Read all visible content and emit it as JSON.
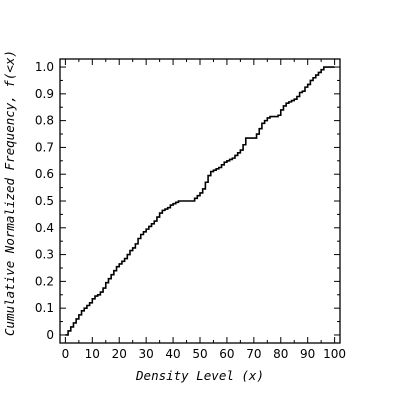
{
  "chart_data": {
    "type": "line",
    "xlabel": "Density Level (x)",
    "ylabel": "Cumulative Normalized Frequency, f(<x)",
    "xlim": [
      -2,
      102
    ],
    "ylim": [
      -0.03,
      1.03
    ],
    "xticks": [
      0,
      10,
      20,
      30,
      40,
      50,
      60,
      70,
      80,
      90,
      100
    ],
    "yticks": [
      0,
      0.1,
      0.2,
      0.3,
      0.4,
      0.5,
      0.6,
      0.7,
      0.8,
      0.9,
      1.0
    ],
    "xtick_labels": [
      "0",
      "10",
      "20",
      "30",
      "40",
      "50",
      "60",
      "70",
      "80",
      "90",
      "100"
    ],
    "ytick_labels": [
      "0",
      "0.1",
      "0.2",
      "0.3",
      "0.4",
      "0.5",
      "0.6",
      "0.7",
      "0.8",
      "0.9",
      "1.0"
    ],
    "grid": false,
    "series": [
      {
        "color": "#000000",
        "x": [
          0,
          1,
          2,
          3,
          4,
          5,
          6,
          7,
          8,
          9,
          10,
          11,
          12,
          13,
          14,
          15,
          16,
          17,
          18,
          19,
          20,
          21,
          22,
          23,
          24,
          25,
          26,
          27,
          28,
          29,
          30,
          31,
          32,
          33,
          34,
          35,
          36,
          37,
          38,
          39,
          40,
          41,
          42,
          43,
          44,
          45,
          46,
          47,
          48,
          49,
          50,
          51,
          52,
          53,
          54,
          55,
          56,
          57,
          58,
          59,
          60,
          61,
          62,
          63,
          64,
          65,
          66,
          67,
          68,
          69,
          70,
          71,
          72,
          73,
          74,
          75,
          76,
          77,
          78,
          79,
          80,
          81,
          82,
          83,
          84,
          85,
          86,
          87,
          88,
          89,
          90,
          91,
          92,
          93,
          94,
          95,
          96,
          97,
          98,
          99,
          100
        ],
        "y": [
          0.0,
          0.015,
          0.03,
          0.045,
          0.06,
          0.075,
          0.09,
          0.1,
          0.11,
          0.12,
          0.135,
          0.145,
          0.15,
          0.16,
          0.175,
          0.195,
          0.21,
          0.225,
          0.24,
          0.255,
          0.265,
          0.275,
          0.285,
          0.3,
          0.315,
          0.325,
          0.34,
          0.36,
          0.375,
          0.385,
          0.395,
          0.405,
          0.415,
          0.425,
          0.44,
          0.455,
          0.465,
          0.47,
          0.475,
          0.485,
          0.49,
          0.495,
          0.5,
          0.5,
          0.5,
          0.5,
          0.5,
          0.5,
          0.51,
          0.52,
          0.53,
          0.545,
          0.57,
          0.595,
          0.61,
          0.615,
          0.62,
          0.625,
          0.635,
          0.645,
          0.65,
          0.655,
          0.66,
          0.67,
          0.68,
          0.69,
          0.71,
          0.735,
          0.735,
          0.735,
          0.735,
          0.75,
          0.77,
          0.79,
          0.8,
          0.81,
          0.815,
          0.815,
          0.815,
          0.82,
          0.84,
          0.855,
          0.865,
          0.87,
          0.875,
          0.88,
          0.89,
          0.905,
          0.91,
          0.925,
          0.935,
          0.95,
          0.96,
          0.97,
          0.98,
          0.99,
          1.0,
          1.0,
          1.0,
          1.0,
          1.0
        ]
      }
    ]
  }
}
